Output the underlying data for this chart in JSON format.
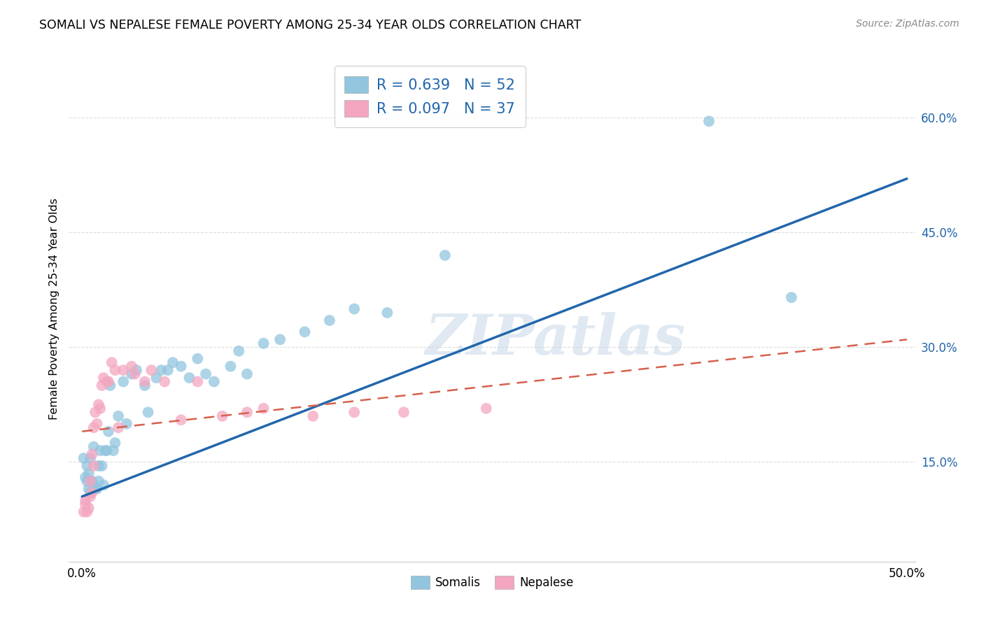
{
  "title": "SOMALI VS NEPALESE FEMALE POVERTY AMONG 25-34 YEAR OLDS CORRELATION CHART",
  "source": "Source: ZipAtlas.com",
  "ylabel": "Female Poverty Among 25-34 Year Olds",
  "xlim": [
    -0.008,
    0.505
  ],
  "ylim": [
    0.02,
    0.68
  ],
  "ytick_positions": [
    0.15,
    0.3,
    0.45,
    0.6
  ],
  "ytick_labels": [
    "15.0%",
    "30.0%",
    "45.0%",
    "60.0%"
  ],
  "somali_R": 0.639,
  "somali_N": 52,
  "nepalese_R": 0.097,
  "nepalese_N": 37,
  "somali_color": "#92c5de",
  "nepalese_color": "#f4a6c0",
  "somali_line_color": "#2166ac",
  "nepalese_line_color": "#d6604d",
  "watermark_text": "ZIPatlas",
  "somali_x": [
    0.001,
    0.002,
    0.003,
    0.003,
    0.004,
    0.004,
    0.005,
    0.005,
    0.006,
    0.007,
    0.007,
    0.008,
    0.009,
    0.01,
    0.01,
    0.011,
    0.012,
    0.013,
    0.014,
    0.015,
    0.016,
    0.017,
    0.019,
    0.02,
    0.022,
    0.025,
    0.027,
    0.03,
    0.033,
    0.038,
    0.04,
    0.045,
    0.048,
    0.052,
    0.055,
    0.06,
    0.065,
    0.07,
    0.075,
    0.08,
    0.09,
    0.095,
    0.1,
    0.11,
    0.12,
    0.135,
    0.15,
    0.165,
    0.185,
    0.22,
    0.38,
    0.43
  ],
  "somali_y": [
    0.155,
    0.13,
    0.125,
    0.145,
    0.135,
    0.115,
    0.11,
    0.155,
    0.125,
    0.12,
    0.17,
    0.115,
    0.115,
    0.125,
    0.145,
    0.165,
    0.145,
    0.12,
    0.165,
    0.165,
    0.19,
    0.25,
    0.165,
    0.175,
    0.21,
    0.255,
    0.2,
    0.265,
    0.27,
    0.25,
    0.215,
    0.26,
    0.27,
    0.27,
    0.28,
    0.275,
    0.26,
    0.285,
    0.265,
    0.255,
    0.275,
    0.295,
    0.265,
    0.305,
    0.31,
    0.32,
    0.335,
    0.35,
    0.345,
    0.42,
    0.595,
    0.365
  ],
  "nepalese_x": [
    0.001,
    0.002,
    0.002,
    0.003,
    0.004,
    0.005,
    0.005,
    0.006,
    0.006,
    0.007,
    0.007,
    0.008,
    0.009,
    0.01,
    0.011,
    0.012,
    0.013,
    0.015,
    0.016,
    0.018,
    0.02,
    0.022,
    0.025,
    0.03,
    0.032,
    0.038,
    0.042,
    0.05,
    0.06,
    0.07,
    0.085,
    0.1,
    0.11,
    0.14,
    0.165,
    0.195,
    0.245
  ],
  "nepalese_y": [
    0.085,
    0.095,
    0.1,
    0.085,
    0.09,
    0.105,
    0.125,
    0.11,
    0.16,
    0.145,
    0.195,
    0.215,
    0.2,
    0.225,
    0.22,
    0.25,
    0.26,
    0.255,
    0.255,
    0.28,
    0.27,
    0.195,
    0.27,
    0.275,
    0.265,
    0.255,
    0.27,
    0.255,
    0.205,
    0.255,
    0.21,
    0.215,
    0.22,
    0.21,
    0.215,
    0.215,
    0.22
  ],
  "somali_line_x": [
    0.0,
    0.5
  ],
  "somali_line_y": [
    0.105,
    0.52
  ],
  "nepalese_line_x": [
    0.0,
    0.5
  ],
  "nepalese_line_y": [
    0.19,
    0.31
  ]
}
